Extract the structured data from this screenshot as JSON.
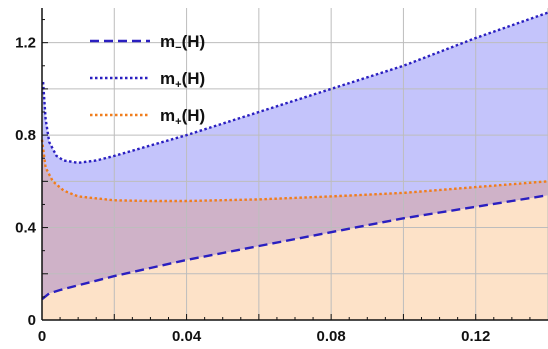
{
  "chart_data": {
    "type": "area",
    "xlim": [
      0,
      0.14
    ],
    "ylim": [
      0,
      1.35
    ],
    "x_ticks": [
      0,
      0.04,
      0.08,
      0.12
    ],
    "x_tick_labels": [
      "0",
      "0.04",
      "0.08",
      "0.12"
    ],
    "y_ticks": [
      0,
      0.4,
      0.8,
      1.2
    ],
    "y_tick_labels": [
      "0",
      "0.4",
      "0.8",
      "1.2"
    ],
    "grid": true,
    "legend_position": "top-left",
    "series": [
      {
        "name": "m₋(H)",
        "name_base": "m",
        "name_sub": "−",
        "name_arg": "(H)",
        "color": "#2a1fc0",
        "dash": "dashed",
        "points": [
          [
            0,
            0.09
          ],
          [
            0.002,
            0.115
          ],
          [
            0.005,
            0.13
          ],
          [
            0.01,
            0.15
          ],
          [
            0.02,
            0.19
          ],
          [
            0.03,
            0.225
          ],
          [
            0.04,
            0.26
          ],
          [
            0.05,
            0.29
          ],
          [
            0.06,
            0.32
          ],
          [
            0.07,
            0.35
          ],
          [
            0.08,
            0.38
          ],
          [
            0.09,
            0.41
          ],
          [
            0.1,
            0.44
          ],
          [
            0.11,
            0.465
          ],
          [
            0.12,
            0.49
          ],
          [
            0.13,
            0.515
          ],
          [
            0.14,
            0.54
          ]
        ]
      },
      {
        "name": "m₊(H)",
        "name_base": "m",
        "name_sub": "+",
        "name_arg": "(H)",
        "color": "#2a1fc0",
        "dash": "dotted",
        "points": [
          [
            0.0003,
            1.03
          ],
          [
            0.001,
            0.87
          ],
          [
            0.002,
            0.77
          ],
          [
            0.004,
            0.71
          ],
          [
            0.006,
            0.69
          ],
          [
            0.01,
            0.68
          ],
          [
            0.015,
            0.69
          ],
          [
            0.02,
            0.71
          ],
          [
            0.03,
            0.755
          ],
          [
            0.04,
            0.8
          ],
          [
            0.06,
            0.9
          ],
          [
            0.08,
            1.0
          ],
          [
            0.1,
            1.1
          ],
          [
            0.12,
            1.22
          ],
          [
            0.14,
            1.33
          ]
        ]
      },
      {
        "name": "m₊(H)",
        "name_base": "m",
        "name_sub": "+",
        "name_arg": "(H)",
        "color": "#f07d1c",
        "dash": "dotted",
        "points": [
          [
            0,
            0.78
          ],
          [
            0.001,
            0.66
          ],
          [
            0.003,
            0.6
          ],
          [
            0.006,
            0.56
          ],
          [
            0.01,
            0.535
          ],
          [
            0.02,
            0.518
          ],
          [
            0.03,
            0.515
          ],
          [
            0.04,
            0.515
          ],
          [
            0.06,
            0.522
          ],
          [
            0.08,
            0.535
          ],
          [
            0.1,
            0.55
          ],
          [
            0.12,
            0.575
          ],
          [
            0.14,
            0.6
          ]
        ]
      }
    ],
    "fill_colors": {
      "upper_region": "#c4c4fb",
      "middle_region": "#cfb2c8",
      "lower_region": "#fde2c8"
    },
    "axis_color": "#111111",
    "grid_color": "#bdbdbd"
  }
}
